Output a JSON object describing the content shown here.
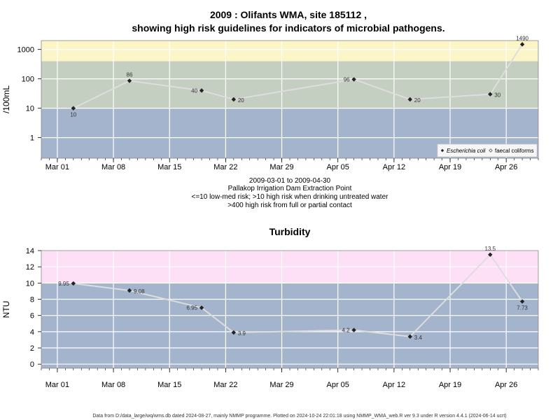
{
  "page": {
    "title_line1": "2009 : Olifants WMA, site 185112 ,",
    "title_line2": "showing high risk guidelines for indicators of microbial pathogens.",
    "caption": [
      "2009-03-01 to 2009-04-30",
      "Pallakop Irrigation Dam Extraction Point",
      "<=10 low-med risk; >10 high risk when drinking untreated water",
      ">400 high risk from full or partial contact"
    ],
    "footer": "Data from D:/data_large/wq/wms.db dated 2024-08-27, mainly NMMP programme. Plotted on 2024-10-24 22:01:18 using NMMP_WMA_web.R ver 9.3 under R version 4.4.1 (2024-06-14 ucrt)"
  },
  "colors": {
    "band_low": "#a3b4cc",
    "band_mid": "#c5cfc1",
    "band_high": "#fcf5c8",
    "band_turb_high": "#fde0f6",
    "line": "#dddddd",
    "point": "#222222",
    "grid": "#ffffff"
  },
  "chart_data": [
    {
      "type": "line",
      "title": "",
      "ylabel": "/100mL",
      "yscale": "log",
      "ylim": [
        0.2,
        2000
      ],
      "xlim": [
        "2009-02-27",
        "2009-04-30"
      ],
      "x_ticks": [
        "Mar 01",
        "Mar 08",
        "Mar 15",
        "Mar 22",
        "Mar 29",
        "Apr 05",
        "Apr 12",
        "Apr 19",
        "Apr 26"
      ],
      "x_tick_dates": [
        "2009-03-01",
        "2009-03-08",
        "2009-03-15",
        "2009-03-22",
        "2009-03-29",
        "2009-04-05",
        "2009-04-12",
        "2009-04-19",
        "2009-04-26"
      ],
      "y_ticks": [
        "1",
        "10",
        "100",
        "1000"
      ],
      "y_tick_values": [
        1,
        10,
        100,
        1000
      ],
      "bands": [
        {
          "from": 0.2,
          "to": 10,
          "color_key": "band_low"
        },
        {
          "from": 10,
          "to": 400,
          "color_key": "band_mid"
        },
        {
          "from": 400,
          "to": 2000,
          "color_key": "band_high"
        }
      ],
      "legend": {
        "position": "bottom-right",
        "entries": [
          "Escherichia coli",
          "faecal coliforms"
        ]
      },
      "series": [
        {
          "name": "Escherichia coli",
          "x": [
            "2009-03-03",
            "2009-03-10",
            "2009-03-19",
            "2009-03-23",
            "2009-04-07",
            "2009-04-14",
            "2009-04-24",
            "2009-04-28"
          ],
          "values": [
            10,
            86,
            40,
            20,
            96,
            20,
            30,
            1490
          ],
          "labels": [
            "10",
            "86",
            "40",
            "20",
            "96",
            "20",
            "30",
            "1490"
          ],
          "label_pos": [
            "below",
            "above",
            "left",
            "right",
            "left",
            "right",
            "right",
            "above"
          ]
        }
      ]
    },
    {
      "type": "line",
      "title": "Turbidity",
      "ylabel": "NTU",
      "yscale": "linear",
      "ylim": [
        -0.5,
        14
      ],
      "xlim": [
        "2009-02-27",
        "2009-04-30"
      ],
      "x_ticks": [
        "Mar 01",
        "Mar 08",
        "Mar 15",
        "Mar 22",
        "Mar 29",
        "Apr 05",
        "Apr 12",
        "Apr 19",
        "Apr 26"
      ],
      "x_tick_dates": [
        "2009-03-01",
        "2009-03-08",
        "2009-03-15",
        "2009-03-22",
        "2009-03-29",
        "2009-04-05",
        "2009-04-12",
        "2009-04-19",
        "2009-04-26"
      ],
      "y_ticks": [
        "0",
        "2",
        "4",
        "6",
        "8",
        "10",
        "12",
        "14"
      ],
      "y_tick_values": [
        0,
        2,
        4,
        6,
        8,
        10,
        12,
        14
      ],
      "bands": [
        {
          "from": -0.5,
          "to": 10,
          "color_key": "band_low"
        },
        {
          "from": 10,
          "to": 14,
          "color_key": "band_turb_high"
        }
      ],
      "series": [
        {
          "name": "",
          "x": [
            "2009-03-03",
            "2009-03-10",
            "2009-03-19",
            "2009-03-23",
            "2009-04-07",
            "2009-04-14",
            "2009-04-24",
            "2009-04-28"
          ],
          "values": [
            9.95,
            9.08,
            6.95,
            3.9,
            4.2,
            3.4,
            13.5,
            7.73
          ],
          "labels": [
            "9.95",
            "9.08",
            "6.95",
            "3.9",
            "4.2",
            "3.4",
            "13.5",
            "7.73"
          ],
          "label_pos": [
            "left",
            "right",
            "left",
            "right",
            "left",
            "right",
            "above",
            "below"
          ]
        }
      ]
    }
  ]
}
